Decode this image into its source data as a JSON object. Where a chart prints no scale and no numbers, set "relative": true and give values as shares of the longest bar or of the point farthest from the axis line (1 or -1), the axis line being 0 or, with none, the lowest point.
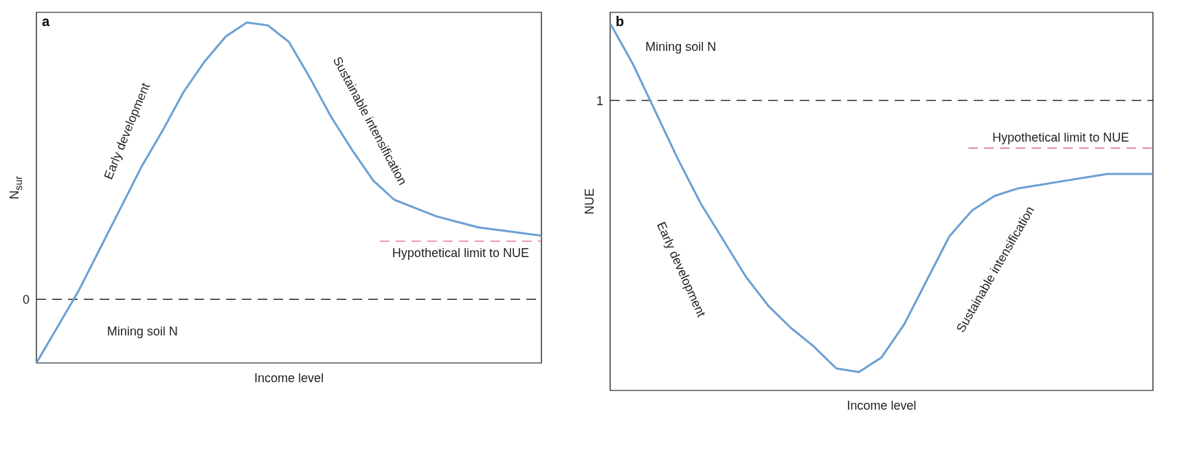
{
  "chart_data": [
    {
      "type": "line",
      "title": "a",
      "xlabel": "Income level",
      "ylabel": "N$_{sur}$",
      "relative": true,
      "tick_labels": false,
      "marker": "none",
      "categories": [
        null,
        null,
        null,
        null,
        null,
        null,
        null,
        null,
        null,
        null,
        null,
        null,
        null,
        null,
        null,
        null,
        null,
        null,
        null,
        null,
        null,
        null,
        null,
        null,
        null
      ],
      "series": [
        {
          "color": "#6a9fd4",
          "line_style": "solid",
          "values": [
            -0.23,
            -0.1,
            0.03,
            0.18,
            0.33,
            0.48,
            0.61,
            0.75,
            0.86,
            0.95,
            1.0,
            0.99,
            0.93,
            0.8,
            0.66,
            0.54,
            0.43,
            0.36,
            0.33,
            0.3,
            0.28,
            0.26,
            0.25,
            0.24,
            0.23
          ]
        }
      ],
      "ref_lines": [
        {
          "axis": "y",
          "value": 0,
          "label": "0",
          "color": "#000000",
          "line_style": "dashed"
        },
        {
          "axis": "y",
          "value": 0.21,
          "label": "Hypothetical limit to NUE",
          "color": "#e06080",
          "line_style": "dashed"
        }
      ],
      "annotations": [
        "Early development",
        "Sustainable intensification",
        "Mining soil N"
      ]
    },
    {
      "type": "line",
      "title": "b",
      "xlabel": "Income level",
      "ylabel": "NUE",
      "relative": true,
      "tick_labels": false,
      "marker": "none",
      "categories": [
        null,
        null,
        null,
        null,
        null,
        null,
        null,
        null,
        null,
        null,
        null,
        null,
        null,
        null,
        null,
        null,
        null,
        null,
        null,
        null,
        null,
        null,
        null,
        null,
        null
      ],
      "series": [
        {
          "color": "#6a9fd4",
          "line_style": "solid",
          "values": [
            1.0,
            0.89,
            0.76,
            0.63,
            0.51,
            0.41,
            0.31,
            0.23,
            0.17,
            0.12,
            0.06,
            0.05,
            0.09,
            0.18,
            0.3,
            0.42,
            0.49,
            0.53,
            0.55,
            0.56,
            0.57,
            0.58,
            0.59,
            0.59,
            0.59
          ]
        }
      ],
      "ref_lines": [
        {
          "axis": "y",
          "value": 0.79,
          "label": "1",
          "color": "#000000",
          "line_style": "dashed"
        },
        {
          "axis": "y",
          "value": 0.66,
          "label": "Hypothetical limit to NUE",
          "color": "#e06080",
          "line_style": "dashed"
        }
      ],
      "annotations": [
        "Mining soil N",
        "Early development",
        "Sustainable intensification"
      ]
    }
  ]
}
